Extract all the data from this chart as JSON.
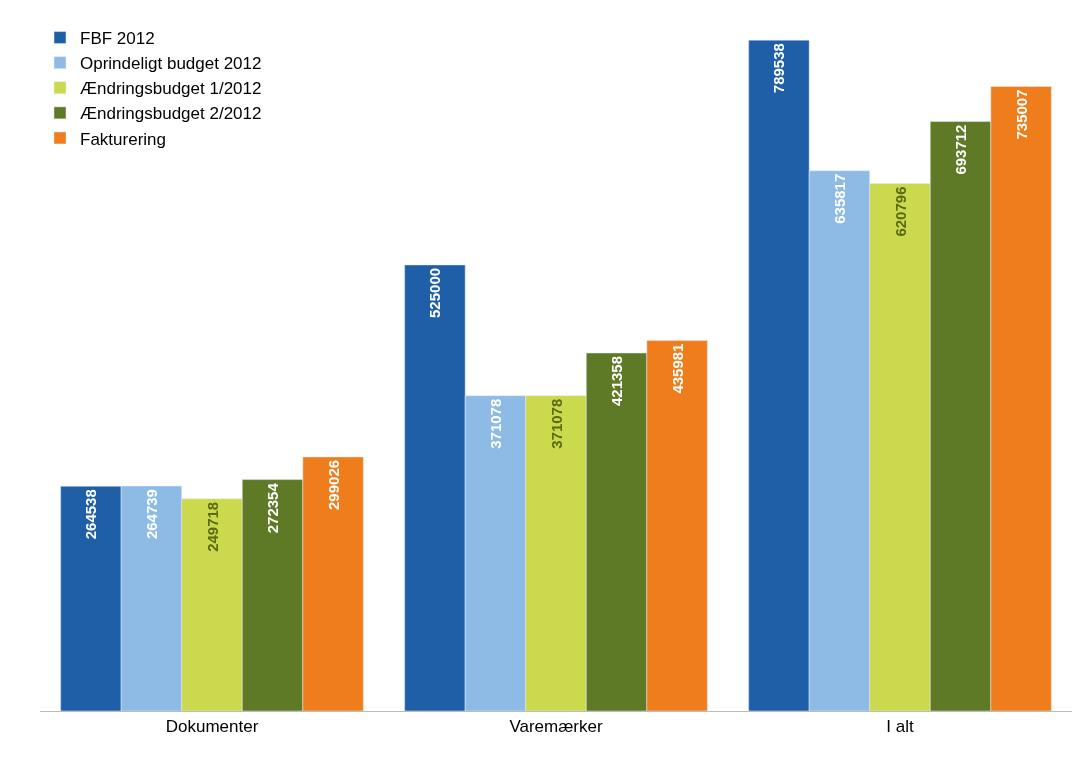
{
  "chart_data": {
    "type": "bar",
    "categories": [
      "Dokumenter",
      "Varemærker",
      "I alt"
    ],
    "series": [
      {
        "name": "FBF 2012",
        "color": "#1f5fa8",
        "values": [
          264538,
          525000,
          789538
        ]
      },
      {
        "name": "Oprindeligt budget 2012",
        "color": "#8dbbe6",
        "values": [
          264739,
          371078,
          635817
        ]
      },
      {
        "name": "Ændringsbudget 1/2012",
        "color": "#cbd94c",
        "values": [
          249718,
          371078,
          620796
        ]
      },
      {
        "name": "Ændringsbudget 2/2012",
        "color": "#5e7a26",
        "values": [
          272354,
          421358,
          693712
        ]
      },
      {
        "name": "Fakturering",
        "color": "#f07d1c",
        "values": [
          299026,
          435981,
          735007
        ]
      }
    ],
    "data_labels": true,
    "legend": "top left"
  }
}
